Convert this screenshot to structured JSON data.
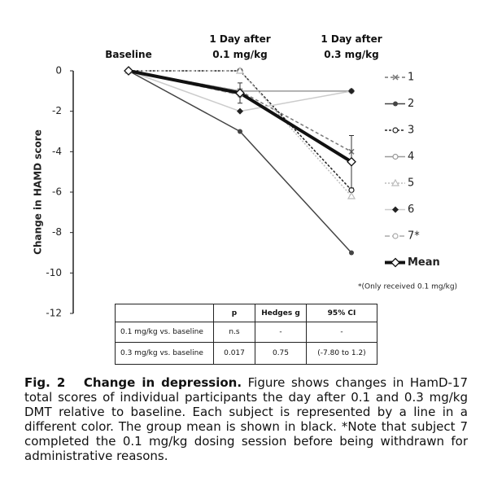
{
  "chart_data": {
    "type": "line",
    "y_label": "Change in HAMD score",
    "categories": [
      "Baseline",
      "1 Day after 0.1 mg/kg",
      "1 Day after 0.3 mg/kg"
    ],
    "ylim": [
      0,
      -12
    ],
    "yticks": [
      0,
      -2,
      -4,
      -6,
      -8,
      -10,
      -12
    ],
    "series": [
      {
        "name": "1",
        "color": "#777777",
        "dash": "4 3",
        "marker": "x",
        "values": [
          0,
          -1,
          -4
        ]
      },
      {
        "name": "2",
        "color": "#444444",
        "dash": "",
        "marker": "circle",
        "values": [
          0,
          -3,
          -9
        ]
      },
      {
        "name": "3",
        "color": "#222222",
        "dash": "3 2",
        "marker": "open-circle",
        "values": [
          0,
          0,
          -5.9
        ]
      },
      {
        "name": "4",
        "color": "#999999",
        "dash": "",
        "marker": "open-circle",
        "values": [
          0,
          -1,
          -1
        ]
      },
      {
        "name": "5",
        "color": "#bbbbbb",
        "dash": "2 2",
        "marker": "triangle",
        "values": [
          0,
          0,
          -6.2
        ]
      },
      {
        "name": "6",
        "color": "#cccccc",
        "dash": "",
        "marker": "diamond",
        "values": [
          0,
          -2,
          -1
        ]
      },
      {
        "name": "7*",
        "color": "#aaaaaa",
        "dash": "6 3",
        "marker": "open-circle",
        "values": [
          0,
          -1.2,
          null
        ]
      },
      {
        "name": "Mean",
        "color": "#111111",
        "dash": "",
        "marker": "open-diamond",
        "width": 4,
        "values": [
          0,
          -1.1,
          -4.5
        ],
        "errors": [
          null,
          0.5,
          1.3
        ]
      }
    ],
    "note": "*(Only received 0.1 mg/kg)"
  },
  "table": {
    "header": [
      "",
      "p",
      "Hedges g",
      "95% CI"
    ],
    "rows": [
      [
        "0.1 mg/kg vs. baseline",
        "n.s",
        "-",
        "-"
      ],
      [
        "0.3 mg/kg vs. baseline",
        "0.017",
        "0.75",
        "(-7.80 to 1.2)"
      ]
    ]
  },
  "caption": {
    "label": "Fig. 2",
    "title": "Change in depression.",
    "text": "Figure shows changes in HamD-17 total scores of individual participants the day after 0.1 and 0.3 mg/kg DMT relative to baseline. Each subject is represented by a line in a different color. The group mean is shown in black. *Note that subject 7 completed the 0.1 mg/kg dosing session before being withdrawn for administrative reasons."
  }
}
